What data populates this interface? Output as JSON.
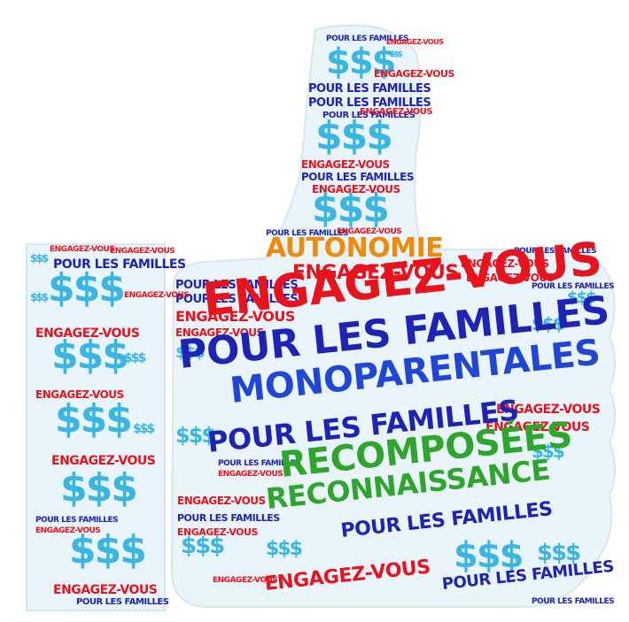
{
  "words": {
    "engagez_vous": "ENGAGEZ-VOUS",
    "pour_les_familles": "POUR LES FAMILLES",
    "monoparentales": "MONOPARENTALES",
    "recomposees": "RECOMPOSÉES",
    "reconnaissance": "RECONNAISSANCE",
    "autonomie": "AUTONOMIE",
    "dollars": "$$$"
  },
  "colors": {
    "red": "#e8131c",
    "blue": "#1d23b4",
    "mid_blue": "#1f46d6",
    "cyan": "#3ab6e5",
    "green": "#2ea52b",
    "orange": "#ee8a0c"
  }
}
